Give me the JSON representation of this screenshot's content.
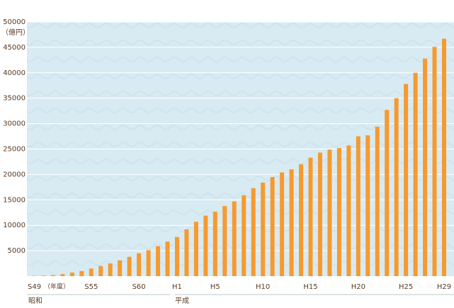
{
  "chart_data": {
    "type": "bar",
    "y_label": "（億円）",
    "x_unit": "（年度）",
    "era_labels": [
      "昭和",
      "平成"
    ],
    "categories": [
      "S49",
      null,
      null,
      null,
      null,
      null,
      "S55",
      null,
      null,
      null,
      null,
      "S60",
      null,
      null,
      null,
      "H1",
      null,
      null,
      null,
      "H5",
      null,
      null,
      null,
      null,
      "H10",
      null,
      null,
      null,
      null,
      "H15",
      null,
      null,
      null,
      null,
      "H20",
      null,
      null,
      null,
      null,
      "H25",
      null,
      null,
      null,
      "H29"
    ],
    "values": [
      50,
      100,
      200,
      400,
      700,
      1000,
      1500,
      2000,
      2500,
      3100,
      3800,
      4500,
      5100,
      5900,
      6800,
      7700,
      9200,
      10700,
      11900,
      12700,
      13800,
      14700,
      15900,
      17300,
      18400,
      19500,
      20400,
      21000,
      22000,
      23300,
      24300,
      24900,
      25200,
      25700,
      27500,
      27700,
      29400,
      32700,
      35000,
      37800,
      40000,
      42800,
      45100,
      46700
    ],
    "color": "#f79a2e",
    "ylim": [
      0,
      50000
    ],
    "yticks": [
      5000,
      10000,
      15000,
      20000,
      25000,
      30000,
      35000,
      40000,
      45000,
      50000
    ],
    "grid": true
  }
}
